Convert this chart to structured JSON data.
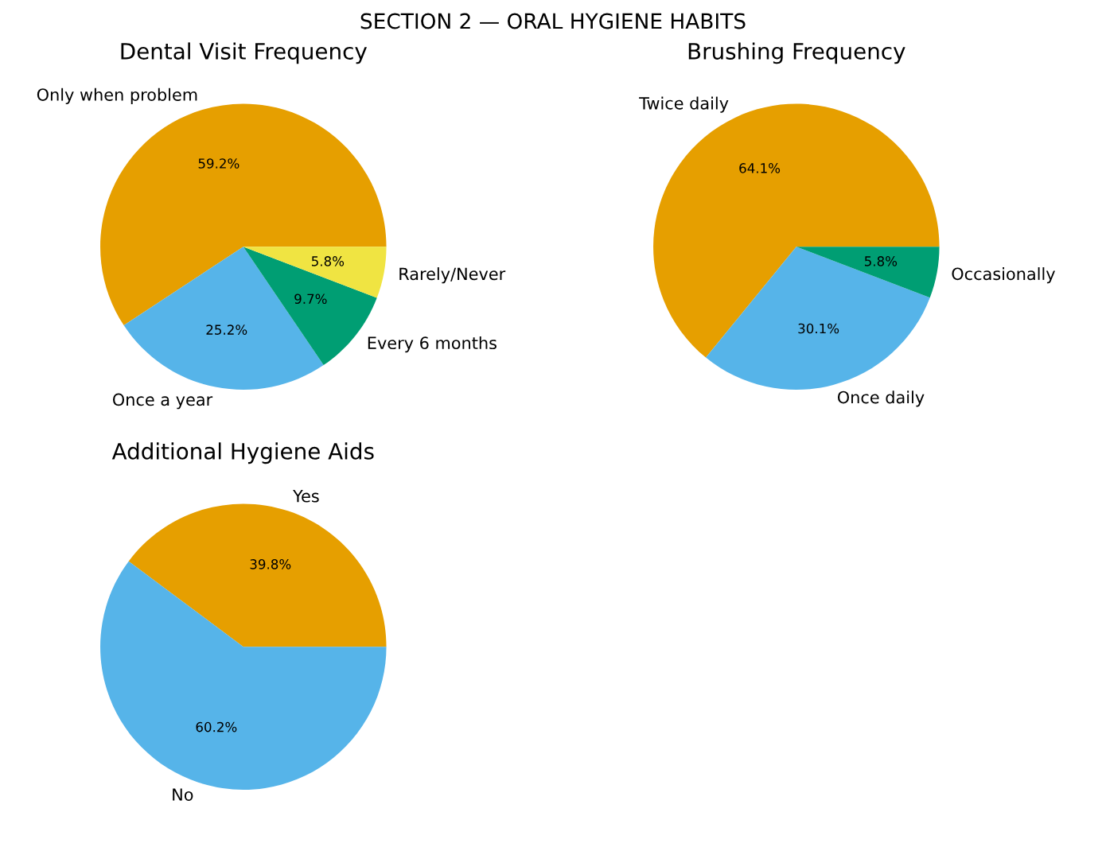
{
  "chart_data": [
    {
      "type": "pie",
      "title": "Dental Visit Frequency",
      "categories": [
        "Only when problem",
        "Once a year",
        "Every 6 months",
        "Rarely/Never"
      ],
      "values": [
        59.2,
        25.2,
        9.7,
        5.8
      ],
      "colors": [
        "#e69f00",
        "#56b4e9",
        "#009e73",
        "#f0e442"
      ],
      "value_labels": [
        "59.2%",
        "25.2%",
        "9.7%",
        "5.8%"
      ],
      "legend": false,
      "annotations": [
        "SECTION 2 — ORAL HYGIENE HABITS"
      ]
    },
    {
      "type": "pie",
      "title": "Brushing Frequency",
      "categories": [
        "Twice daily",
        "Once daily",
        "Occasionally"
      ],
      "values": [
        64.1,
        30.1,
        5.8
      ],
      "colors": [
        "#e69f00",
        "#56b4e9",
        "#009e73"
      ],
      "value_labels": [
        "64.1%",
        "30.1%",
        "5.8%"
      ],
      "legend": false
    },
    {
      "type": "pie",
      "title": "Additional Hygiene Aids",
      "categories": [
        "Yes",
        "No"
      ],
      "values": [
        39.8,
        60.2
      ],
      "colors": [
        "#e69f00",
        "#56b4e9"
      ],
      "value_labels": [
        "39.8%",
        "60.2%"
      ],
      "legend": false
    }
  ]
}
